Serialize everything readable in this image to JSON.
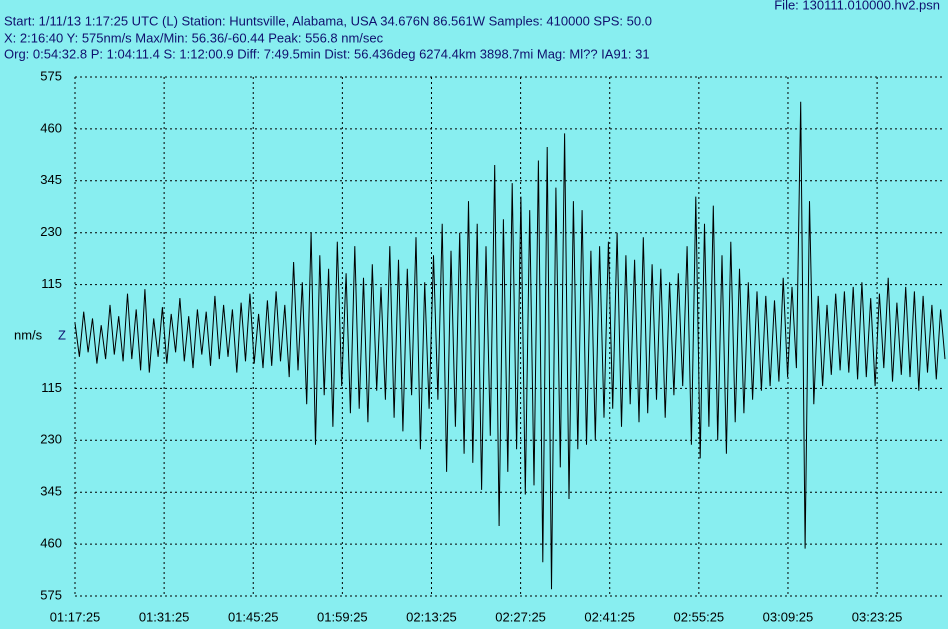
{
  "chart_data": {
    "type": "line",
    "title": "File: 130111.010000.hv2.psn",
    "header_lines": [
      "Start: 1/11/13  1:17:25 UTC (L) Station: Huntsville, Alabama, USA 34.676N 86.561W Samples: 410000  SPS: 50.0",
      "X: 2:16:40 Y: 575nm/s Max/Min: 56.36/-60.44  Peak: 556.8 nm/sec",
      "Org: 0:54:32.8 P: 1:04:11.4 S: 1:12:00.9 Diff: 7:49.5min Dist: 56.436deg 6274.4km 3898.7mi  Mag: Ml?? IA91: 31"
    ],
    "y_label": "nm/s",
    "channel": "Z",
    "background": "#88eef0",
    "grid": true,
    "xlim": [
      "01:17:25",
      "03:34:05"
    ],
    "xticks": [
      "01:17:25",
      "01:31:25",
      "01:45:25",
      "01:59:25",
      "02:13:25",
      "02:27:25",
      "02:41:25",
      "02:55:25",
      "03:09:25",
      "03:23:25"
    ],
    "ylim": [
      -575,
      575
    ],
    "yticks": [
      575,
      460,
      345,
      230,
      115,
      {
        "value": -115,
        "label": "115"
      },
      {
        "value": -230,
        "label": "230"
      },
      {
        "value": -345,
        "label": "345"
      },
      {
        "value": -460,
        "label": "460"
      },
      {
        "value": -575,
        "label": "575"
      }
    ],
    "series": [
      {
        "color": "#000000",
        "values": [
          30,
          -45,
          55,
          -35,
          40,
          -60,
          25,
          -50,
          70,
          -40,
          45,
          -55,
          95,
          -50,
          60,
          -75,
          105,
          -80,
          40,
          -45,
          65,
          -60,
          50,
          -35,
          85,
          -55,
          45,
          -70,
          60,
          -40,
          55,
          -65,
          90,
          -50,
          70,
          -45,
          60,
          -80,
          75,
          -55,
          95,
          -60,
          50,
          -70,
          80,
          -65,
          100,
          -55,
          70,
          -90,
          165,
          -75,
          120,
          -150,
          230,
          -240,
          180,
          -130,
          150,
          -200,
          210,
          -110,
          140,
          -170,
          200,
          -160,
          130,
          -190,
          160,
          -120,
          110,
          -140,
          200,
          -180,
          170,
          -210,
          150,
          -130,
          220,
          -250,
          120,
          -160,
          180,
          -140,
          250,
          -300,
          190,
          -200,
          230,
          -260,
          300,
          -280,
          250,
          -340,
          200,
          -220,
          380,
          -420,
          260,
          -300,
          340,
          -250,
          310,
          -350,
          280,
          -330,
          390,
          -500,
          420,
          -560,
          330,
          -290,
          450,
          -360,
          300,
          -250,
          280,
          -240,
          190,
          -230,
          200,
          -180,
          210,
          -160,
          230,
          -200,
          180,
          -150,
          170,
          -190,
          220,
          -170,
          160,
          -140,
          150,
          -180,
          120,
          -130,
          140,
          -110,
          200,
          -240,
          310,
          -270,
          250,
          -200,
          290,
          -230,
          180,
          -260,
          210,
          -190,
          150,
          -170,
          120,
          -140,
          100,
          -120,
          90,
          -110,
          80,
          -100,
          130,
          -90,
          110,
          -70,
          520,
          -470,
          300,
          -150,
          90,
          -110,
          70,
          -85,
          95,
          -75,
          100,
          -80,
          110,
          -95,
          120,
          -90,
          85,
          -110,
          95,
          -70,
          130,
          -100,
          75,
          -85,
          110,
          -90,
          100,
          -120,
          90,
          -80,
          70,
          -95,
          60,
          -50
        ]
      }
    ]
  }
}
